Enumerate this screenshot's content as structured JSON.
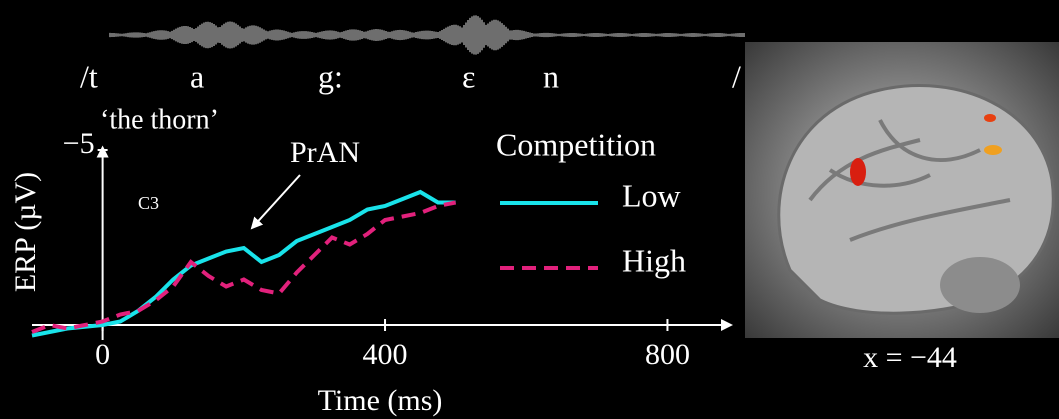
{
  "chart_data": {
    "type": "line",
    "transcription": [
      "/t",
      "a",
      "g:",
      "ɛ",
      "n",
      "/"
    ],
    "gloss": "‘the thorn’",
    "annotation": "PrAN",
    "channel": "C3",
    "legend_title": "Competition",
    "xlabel": "Time (ms)",
    "ylabel": "ERP (µV)",
    "brain_label": "x = −44",
    "x": [
      -100,
      -75,
      -50,
      -25,
      0,
      25,
      50,
      75,
      100,
      125,
      150,
      175,
      200,
      225,
      250,
      275,
      300,
      325,
      350,
      375,
      400,
      425,
      450,
      475,
      500
    ],
    "series": [
      {
        "name": "Low",
        "color": "#19e3ea",
        "style": "solid",
        "values": [
          0.3,
          0.2,
          0.1,
          0.05,
          0,
          -0.1,
          -0.4,
          -0.8,
          -1.3,
          -1.7,
          -1.9,
          -2.1,
          -2.2,
          -1.8,
          -2.0,
          -2.4,
          -2.6,
          -2.8,
          -3.0,
          -3.3,
          -3.4,
          -3.6,
          -3.8,
          -3.5,
          -3.5
        ]
      },
      {
        "name": "High",
        "color": "#e2217c",
        "style": "dashed",
        "values": [
          0.2,
          0.0,
          0.1,
          0.0,
          -0.1,
          -0.3,
          -0.4,
          -0.7,
          -1.1,
          -1.8,
          -1.4,
          -1.1,
          -1.3,
          -1.0,
          -0.9,
          -1.5,
          -2.0,
          -2.5,
          -2.3,
          -2.6,
          -3.0,
          -3.1,
          -3.2,
          -3.4,
          -3.5
        ]
      }
    ],
    "xlim": [
      -100,
      890
    ],
    "xticks": [
      0,
      400,
      800
    ],
    "ylim": [
      1,
      -5.5
    ],
    "yticks": [
      {
        "value": -5,
        "label": "−5"
      }
    ]
  }
}
